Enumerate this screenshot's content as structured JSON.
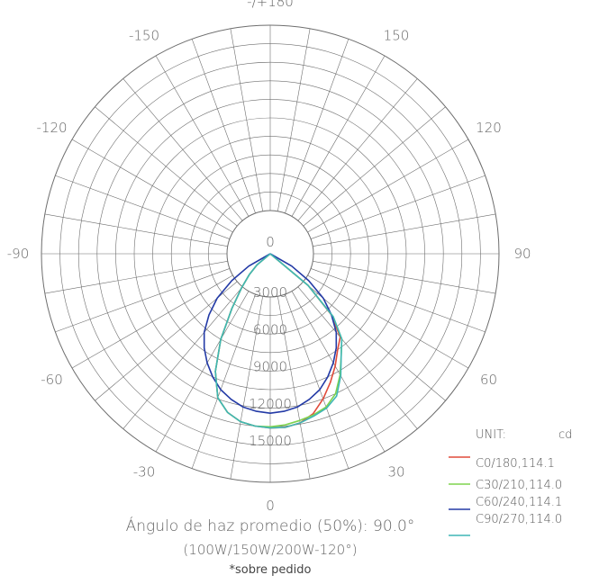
{
  "chart_data": {
    "type": "polar-line",
    "angle_ticks": [
      "-/+180",
      "150",
      "120",
      "90",
      "60",
      "30",
      "0",
      "-30",
      "-60",
      "-90",
      "-120",
      "-150"
    ],
    "angle_tick_values": [
      180,
      150,
      120,
      90,
      60,
      30,
      0,
      -30,
      -60,
      -90,
      -120,
      -150
    ],
    "radial_ticks": [
      0,
      3000,
      6000,
      9000,
      12000,
      15000
    ],
    "radial_tick_labels": [
      "0",
      "3000",
      "6000",
      "9000",
      "12000",
      "15000"
    ],
    "rmax": 15000,
    "unit_label": "UNIT:",
    "unit_value": "cd",
    "series": [
      {
        "name": "C0/180,114.1",
        "color": "#e04b3a",
        "angles": [
          -55,
          -50,
          -45,
          -40,
          -35,
          -30,
          -25,
          -20,
          -15,
          -10,
          -5,
          0,
          5,
          10,
          15,
          20,
          25,
          30,
          35,
          40,
          45,
          50,
          55
        ],
        "values": [
          0,
          1400,
          2400,
          3600,
          5400,
          8000,
          10500,
          12400,
          13300,
          13800,
          14000,
          14100,
          14100,
          13900,
          13400,
          12500,
          11500,
          10500,
          9500,
          8800,
          7000,
          4000,
          0
        ]
      },
      {
        "name": "C30/210,114.0",
        "color": "#7ed34f",
        "angles": [
          -55,
          -50,
          -45,
          -40,
          -35,
          -30,
          -25,
          -20,
          -15,
          -10,
          -5,
          0,
          5,
          10,
          15,
          20,
          25,
          30,
          35,
          40,
          45,
          50,
          55
        ],
        "values": [
          0,
          1400,
          2400,
          3600,
          5400,
          8000,
          10500,
          12400,
          13300,
          13800,
          14000,
          14000,
          13900,
          13700,
          13500,
          13200,
          12500,
          11300,
          10000,
          9000,
          7200,
          4000,
          0
        ]
      },
      {
        "name": "C60/240,114.1",
        "color": "#233aa6",
        "angles": [
          -65,
          -60,
          -55,
          -50,
          -45,
          -40,
          -35,
          -30,
          -25,
          -20,
          -15,
          -10,
          -5,
          0,
          5,
          10,
          15,
          20,
          25,
          30,
          35,
          40,
          45,
          50,
          55,
          60,
          65
        ],
        "values": [
          0,
          2000,
          3800,
          5600,
          7000,
          8300,
          9300,
          10200,
          11000,
          11700,
          12200,
          12600,
          12800,
          12900,
          12800,
          12600,
          12200,
          11700,
          11000,
          10200,
          9300,
          8300,
          7000,
          5600,
          3800,
          2000,
          0
        ]
      },
      {
        "name": "C90/270,114.0",
        "color": "#3fb6b5",
        "angles": [
          -55,
          -50,
          -45,
          -40,
          -35,
          -30,
          -25,
          -20,
          -15,
          -10,
          -5,
          0,
          5,
          10,
          15,
          20,
          25,
          30,
          35,
          40,
          45,
          50,
          55
        ],
        "values": [
          0,
          1400,
          2400,
          3600,
          5400,
          8000,
          10500,
          12400,
          13300,
          13800,
          14000,
          14100,
          14100,
          13900,
          13600,
          13300,
          12700,
          11400,
          10000,
          9000,
          7200,
          4000,
          0
        ]
      }
    ],
    "grid": true,
    "legend_position": "bottom-right",
    "caption_line1": "Ángulo de haz promedio (50%): 90.0°",
    "caption_line2": "(100W/150W/200W-120°)",
    "caption_line3": "*sobre pedido"
  }
}
